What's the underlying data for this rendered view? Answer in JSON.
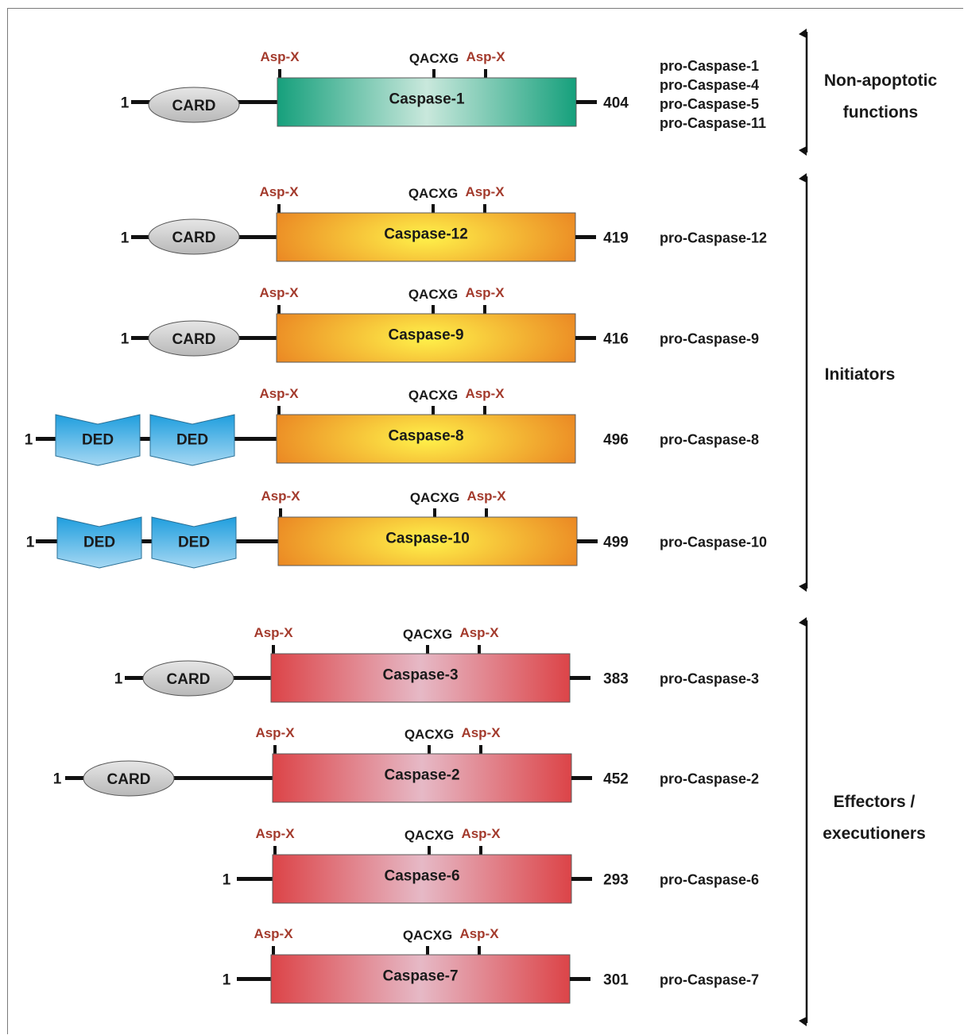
{
  "labels": {
    "asp": "Asp-X",
    "qacxg": "QACXG",
    "start": "1",
    "card": "CARD",
    "ded": "DED"
  },
  "colors": {
    "asp_label": "#a33a2c",
    "text": "#1a1a1a",
    "line": "#111111",
    "green_edge": "#16a07c",
    "green_center": "#c9e8dc",
    "orange_edge": "#e8791e",
    "orange_center": "#fff24a",
    "red_edge": "#dc4448",
    "red_center": "#e6b9c6",
    "card_fill": "#b8b8b8",
    "ded_fill": "#1f9ede"
  },
  "rows": [
    {
      "name": "Caspase-1",
      "style": "green",
      "prodomain": "card",
      "end": "404",
      "end_joined": true,
      "pro_names": [
        "pro-Caspase-1",
        "pro-Caspase-4",
        "pro-Caspase-5",
        "pro-Caspase-11"
      ]
    },
    {
      "name": "Caspase-12",
      "style": "orange",
      "prodomain": "card",
      "end": "419",
      "end_joined": true,
      "pro_names": [
        "pro-Caspase-12"
      ]
    },
    {
      "name": "Caspase-9",
      "style": "orange",
      "prodomain": "card",
      "end": "416",
      "end_joined": true,
      "pro_names": [
        "pro-Caspase-9"
      ]
    },
    {
      "name": "Caspase-8",
      "style": "orange",
      "prodomain": "ded",
      "end": "496",
      "end_joined": false,
      "pro_names": [
        "pro-Caspase-8"
      ]
    },
    {
      "name": "Caspase-10",
      "style": "orange",
      "prodomain": "ded",
      "end": "499",
      "end_joined": true,
      "pro_names": [
        "pro-Caspase-10"
      ]
    },
    {
      "name": "Caspase-3",
      "style": "red",
      "prodomain": "card",
      "end": "383",
      "end_joined": true,
      "pro_names": [
        "pro-Caspase-3"
      ]
    },
    {
      "name": "Caspase-2",
      "style": "red",
      "prodomain": "card-long",
      "end": "452",
      "end_joined": true,
      "pro_names": [
        "pro-Caspase-2"
      ]
    },
    {
      "name": "Caspase-6",
      "style": "red",
      "prodomain": "none",
      "end": "293",
      "end_joined": true,
      "pro_names": [
        "pro-Caspase-6"
      ]
    },
    {
      "name": "Caspase-7",
      "style": "red",
      "prodomain": "none",
      "end": "301",
      "end_joined": true,
      "pro_names": [
        "pro-Caspase-7"
      ]
    }
  ],
  "groups": [
    {
      "label_lines": [
        "Non-apoptotic",
        "functions"
      ]
    },
    {
      "label_lines": [
        "Initiators"
      ]
    },
    {
      "label_lines": [
        "Effectors /",
        "executioners"
      ]
    }
  ]
}
